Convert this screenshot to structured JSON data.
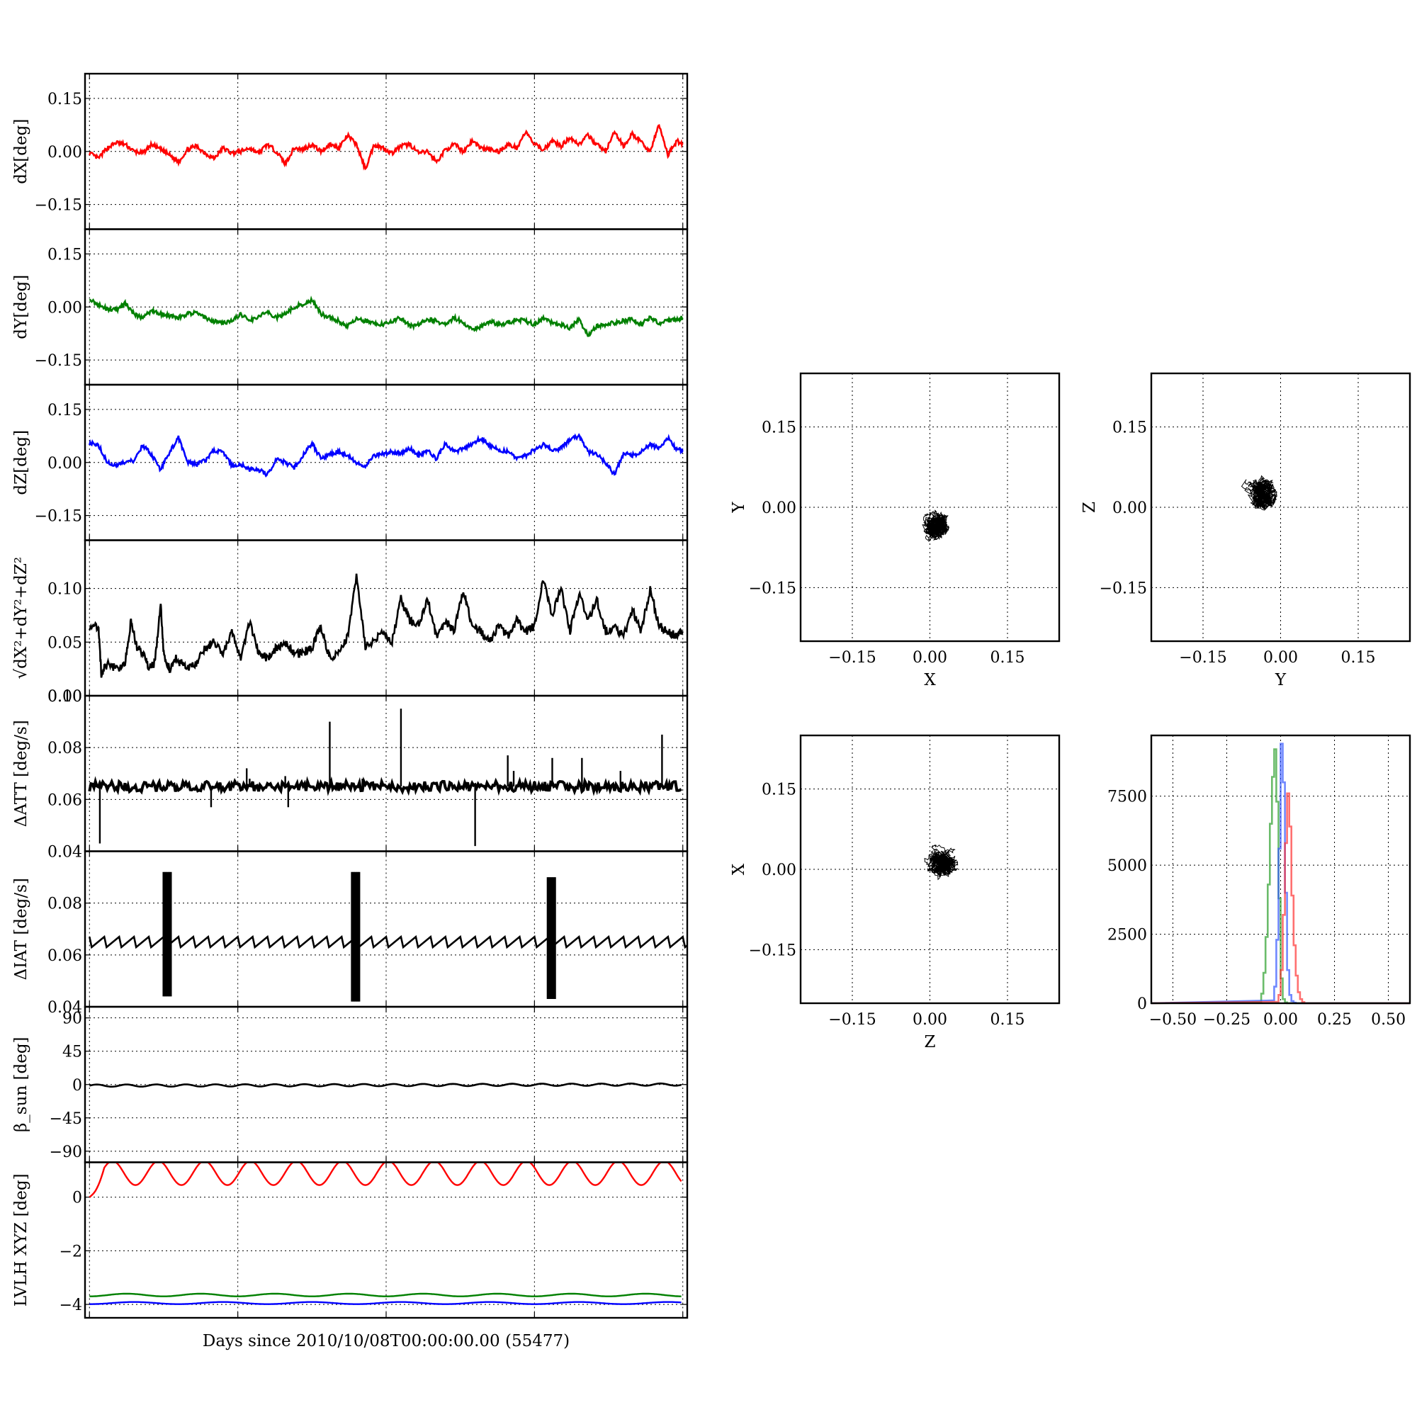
{
  "figure_xlabel": "Days since 2010/10/08T00:00:00.00 (55477)",
  "chart_data": [
    {
      "id": "dx",
      "type": "line",
      "ylabel": "dX[deg]",
      "ylim": [
        -0.22,
        0.22
      ],
      "yticks": [
        0.15,
        0.0,
        -0.15
      ],
      "ytick_labels": [
        "0.15",
        "0.00",
        "−0.15"
      ],
      "grid": true,
      "series": [
        {
          "color": "#ff0000",
          "x": [
            0,
            0.3,
            0.6,
            0.9,
            1.2,
            1.5,
            1.8,
            2.1,
            2.4,
            2.7,
            3.0,
            3.3,
            3.6,
            3.9,
            4.2,
            4.5,
            4.8,
            5.1,
            5.4,
            5.7,
            6.0,
            6.3,
            6.6,
            6.9,
            7.2,
            7.5,
            7.8,
            8.1,
            8.4,
            8.7,
            9.0,
            9.3,
            9.6,
            9.9,
            10.2,
            10.5,
            10.8,
            11.1,
            11.4,
            11.7,
            12.0,
            12.3,
            12.6,
            12.9,
            13.2,
            13.5,
            13.8,
            14.1,
            14.4,
            14.7,
            15.0,
            15.3,
            15.6,
            15.9,
            16.2,
            16.5,
            16.8,
            17.1,
            17.4,
            17.7,
            18.0,
            18.3,
            18.6,
            18.9,
            19.2,
            19.5,
            19.8,
            20.0
          ],
          "values": [
            -0.005,
            -0.02,
            0.01,
            0.025,
            0.02,
            0.0,
            -0.005,
            0.02,
            0.005,
            -0.01,
            -0.03,
            0.005,
            0.015,
            -0.005,
            -0.02,
            0.01,
            -0.005,
            0.0,
            0.01,
            -0.005,
            0.02,
            0.0,
            -0.035,
            0.01,
            0.005,
            0.02,
            0.0,
            0.02,
            0.01,
            0.045,
            0.02,
            -0.05,
            0.02,
            0.01,
            -0.005,
            0.015,
            0.02,
            -0.005,
            0.0,
            -0.03,
            0.005,
            0.02,
            0.0,
            0.03,
            0.01,
            0.005,
            0.0,
            0.02,
            0.01,
            0.055,
            0.02,
            0.005,
            0.03,
            0.015,
            0.04,
            0.02,
            0.045,
            0.02,
            0.0,
            0.055,
            0.015,
            0.05,
            0.025,
            0.0,
            0.075,
            -0.01,
            0.03,
            0.02
          ]
        }
      ]
    },
    {
      "id": "dy",
      "type": "line",
      "ylabel": "dY[deg]",
      "ylim": [
        -0.22,
        0.22
      ],
      "yticks": [
        0.15,
        0.0,
        -0.15
      ],
      "ytick_labels": [
        "0.15",
        "0.00",
        "−0.15"
      ],
      "grid": true,
      "series": [
        {
          "color": "#008000",
          "x": [
            0,
            0.3,
            0.6,
            0.9,
            1.2,
            1.5,
            1.8,
            2.1,
            2.4,
            2.7,
            3.0,
            3.3,
            3.6,
            3.9,
            4.2,
            4.5,
            4.8,
            5.1,
            5.4,
            5.7,
            6.0,
            6.3,
            6.6,
            6.9,
            7.2,
            7.5,
            7.8,
            8.1,
            8.4,
            8.7,
            9.0,
            9.3,
            9.6,
            9.9,
            10.2,
            10.5,
            10.8,
            11.1,
            11.4,
            11.7,
            12.0,
            12.3,
            12.6,
            12.9,
            13.2,
            13.5,
            13.8,
            14.1,
            14.4,
            14.7,
            15.0,
            15.3,
            15.6,
            15.9,
            16.2,
            16.5,
            16.8,
            17.1,
            17.4,
            17.7,
            18.0,
            18.3,
            18.6,
            18.9,
            19.2,
            19.5,
            19.8,
            20.0
          ],
          "values": [
            0.025,
            0.005,
            -0.005,
            -0.01,
            0.01,
            -0.02,
            -0.03,
            -0.01,
            -0.02,
            -0.025,
            -0.03,
            -0.02,
            -0.015,
            -0.03,
            -0.04,
            -0.045,
            -0.04,
            -0.02,
            -0.04,
            -0.025,
            -0.015,
            -0.03,
            -0.02,
            0.0,
            0.01,
            0.02,
            -0.02,
            -0.03,
            -0.04,
            -0.055,
            -0.035,
            -0.04,
            -0.045,
            -0.05,
            -0.04,
            -0.03,
            -0.055,
            -0.05,
            -0.035,
            -0.04,
            -0.05,
            -0.03,
            -0.045,
            -0.065,
            -0.055,
            -0.04,
            -0.05,
            -0.045,
            -0.035,
            -0.04,
            -0.05,
            -0.03,
            -0.045,
            -0.05,
            -0.06,
            -0.035,
            -0.08,
            -0.055,
            -0.05,
            -0.045,
            -0.04,
            -0.035,
            -0.05,
            -0.03,
            -0.045,
            -0.04,
            -0.035,
            -0.03
          ]
        }
      ]
    },
    {
      "id": "dz",
      "type": "line",
      "ylabel": "dZ[deg]",
      "ylim": [
        -0.22,
        0.22
      ],
      "yticks": [
        0.15,
        0.0,
        -0.15
      ],
      "ytick_labels": [
        "0.15",
        "0.00",
        "−0.15"
      ],
      "grid": true,
      "series": [
        {
          "color": "#0000ff",
          "x": [
            0,
            0.3,
            0.6,
            0.9,
            1.2,
            1.5,
            1.8,
            2.1,
            2.4,
            2.7,
            3.0,
            3.3,
            3.6,
            3.9,
            4.2,
            4.5,
            4.8,
            5.1,
            5.4,
            5.7,
            6.0,
            6.3,
            6.6,
            6.9,
            7.2,
            7.5,
            7.8,
            8.1,
            8.4,
            8.7,
            9.0,
            9.3,
            9.6,
            9.9,
            10.2,
            10.5,
            10.8,
            11.1,
            11.4,
            11.7,
            12.0,
            12.3,
            12.6,
            12.9,
            13.2,
            13.5,
            13.8,
            14.1,
            14.4,
            14.7,
            15.0,
            15.3,
            15.6,
            15.9,
            16.2,
            16.5,
            16.8,
            17.1,
            17.4,
            17.7,
            18.0,
            18.3,
            18.6,
            18.9,
            19.2,
            19.5,
            19.8,
            20.0
          ],
          "values": [
            0.055,
            0.05,
            0.0,
            -0.01,
            0.0,
            0.005,
            0.05,
            0.02,
            -0.02,
            0.03,
            0.07,
            0.0,
            -0.005,
            0.005,
            0.035,
            0.03,
            -0.01,
            -0.005,
            -0.02,
            -0.02,
            -0.035,
            0.01,
            0.0,
            -0.015,
            0.02,
            0.055,
            0.01,
            0.025,
            0.03,
            0.02,
            0.0,
            -0.01,
            0.02,
            0.025,
            0.03,
            0.025,
            0.04,
            0.02,
            0.035,
            0.01,
            0.055,
            0.03,
            0.04,
            0.05,
            0.07,
            0.045,
            0.035,
            0.03,
            0.015,
            0.02,
            0.035,
            0.05,
            0.035,
            0.04,
            0.065,
            0.075,
            0.03,
            0.025,
            0.0,
            -0.035,
            0.025,
            0.02,
            0.03,
            0.05,
            0.04,
            0.07,
            0.035,
            0.035
          ]
        }
      ]
    },
    {
      "id": "mag",
      "type": "line",
      "ylabel": "√dX²+dY²+dZ²",
      "ylim": [
        0.0,
        0.145
      ],
      "yticks": [
        0.1,
        0.05,
        0.0
      ],
      "ytick_labels": [
        "0.10",
        "0.05",
        "0.00"
      ],
      "grid": true,
      "series": [
        {
          "color": "#000000",
          "x": [
            0,
            0.3,
            0.4,
            0.6,
            0.9,
            1.2,
            1.4,
            1.6,
            1.8,
            2.0,
            2.2,
            2.4,
            2.5,
            2.7,
            2.9,
            3.1,
            3.3,
            3.6,
            3.9,
            4.2,
            4.5,
            4.8,
            5.1,
            5.4,
            5.7,
            6.0,
            6.3,
            6.6,
            6.9,
            7.2,
            7.5,
            7.8,
            8.1,
            8.4,
            8.7,
            9.0,
            9.3,
            9.6,
            9.9,
            10.2,
            10.5,
            10.8,
            11.1,
            11.4,
            11.7,
            12.0,
            12.3,
            12.6,
            12.9,
            13.2,
            13.5,
            13.8,
            14.1,
            14.4,
            14.7,
            15.0,
            15.3,
            15.6,
            15.9,
            16.2,
            16.5,
            16.8,
            17.1,
            17.4,
            17.7,
            18.0,
            18.3,
            18.6,
            18.9,
            19.2,
            19.5,
            19.8,
            20.0
          ],
          "values": [
            0.065,
            0.065,
            0.02,
            0.03,
            0.025,
            0.03,
            0.07,
            0.045,
            0.04,
            0.025,
            0.03,
            0.085,
            0.04,
            0.025,
            0.035,
            0.03,
            0.025,
            0.03,
            0.045,
            0.05,
            0.04,
            0.06,
            0.035,
            0.07,
            0.04,
            0.035,
            0.045,
            0.05,
            0.04,
            0.04,
            0.045,
            0.065,
            0.035,
            0.04,
            0.055,
            0.11,
            0.045,
            0.05,
            0.06,
            0.05,
            0.09,
            0.07,
            0.065,
            0.09,
            0.055,
            0.07,
            0.06,
            0.1,
            0.065,
            0.06,
            0.05,
            0.065,
            0.055,
            0.07,
            0.06,
            0.065,
            0.11,
            0.075,
            0.1,
            0.06,
            0.095,
            0.07,
            0.09,
            0.06,
            0.065,
            0.055,
            0.08,
            0.06,
            0.1,
            0.065,
            0.06,
            0.055,
            0.06
          ]
        }
      ]
    },
    {
      "id": "datt",
      "type": "line",
      "ylabel": "ΔATT [deg/s]",
      "ylim": [
        0.04,
        0.1
      ],
      "yticks": [
        0.1,
        0.08,
        0.06,
        0.04
      ],
      "ytick_labels": [
        "0.10",
        "0.08",
        "0.06",
        "0.04"
      ],
      "grid": true,
      "baseline": 0.065,
      "spikes": [
        [
          0.35,
          0.043
        ],
        [
          4.1,
          0.057
        ],
        [
          5.3,
          0.072
        ],
        [
          5.4,
          0.068
        ],
        [
          6.7,
          0.057
        ],
        [
          6.6,
          0.069
        ],
        [
          8.1,
          0.09
        ],
        [
          9.2,
          0.068
        ],
        [
          10.5,
          0.095
        ],
        [
          13.0,
          0.042
        ],
        [
          14.1,
          0.077
        ],
        [
          14.3,
          0.071
        ],
        [
          15.6,
          0.076
        ],
        [
          16.6,
          0.076
        ],
        [
          17.9,
          0.071
        ],
        [
          19.3,
          0.085
        ]
      ],
      "series": [
        {
          "color": "#000000"
        }
      ]
    },
    {
      "id": "diat",
      "type": "line",
      "ylabel": "ΔIAT [deg/s]",
      "ylim": [
        0.04,
        0.1
      ],
      "yticks": [
        0.08,
        0.06,
        0.04
      ],
      "ytick_labels": [
        "0.08",
        "0.06",
        "0.04"
      ],
      "grid": true,
      "sawtooth": {
        "low": 0.063,
        "high": 0.067,
        "period": 0.5
      },
      "bursts": [
        [
          2.5,
          2.75,
          0.044,
          0.092
        ],
        [
          8.85,
          9.1,
          0.042,
          0.092
        ],
        [
          15.45,
          15.7,
          0.043,
          0.09
        ]
      ],
      "series": [
        {
          "color": "#000000"
        }
      ]
    },
    {
      "id": "beta",
      "type": "line",
      "ylabel": "β_sun [deg]",
      "ylim": [
        -105,
        105
      ],
      "yticks": [
        90,
        45,
        0,
        -45,
        -90
      ],
      "ytick_labels": [
        "90",
        "45",
        "0",
        "−45",
        "−90"
      ],
      "grid": true,
      "wave": {
        "mean": 0,
        "amplitude": 1.5,
        "period": 1.0
      },
      "series": [
        {
          "color": "#000000"
        }
      ]
    },
    {
      "id": "lvlh",
      "type": "line",
      "ylabel": "LVLH XYZ [deg]",
      "ylim": [
        -4.5,
        1.3
      ],
      "yticks": [
        0,
        -2,
        -4
      ],
      "ytick_labels": [
        "0",
        "−2",
        "−4"
      ],
      "grid": true,
      "series": [
        {
          "color": "#ff0000",
          "wave": {
            "mean": 0.9,
            "amplitude": 0.45,
            "period": 1.55
          }
        },
        {
          "color": "#008000",
          "wave": {
            "mean": -3.65,
            "amplitude": 0.05,
            "period": 2.5
          }
        },
        {
          "color": "#0000ff",
          "wave": {
            "mean": -3.95,
            "amplitude": 0.04,
            "period": 3.0
          }
        }
      ]
    },
    {
      "id": "xy",
      "type": "scatter",
      "xlabel": "X",
      "ylabel": "Y",
      "xlim": [
        -0.25,
        0.25
      ],
      "ylim": [
        -0.25,
        0.25
      ],
      "ticks": [
        -0.15,
        0.0,
        0.15
      ],
      "tick_labels": [
        "−0.15",
        "0.00",
        "0.15"
      ],
      "grid": true,
      "cluster": {
        "cx": 0.015,
        "cy": -0.035,
        "sx": 0.03,
        "sy": 0.03
      }
    },
    {
      "id": "yz",
      "type": "scatter",
      "xlabel": "Y",
      "ylabel": "Z",
      "xlim": [
        -0.25,
        0.25
      ],
      "ylim": [
        -0.25,
        0.25
      ],
      "ticks": [
        -0.15,
        0.0,
        0.15
      ],
      "tick_labels": [
        "−0.15",
        "0.00",
        "0.15"
      ],
      "grid": true,
      "cluster": {
        "cx": -0.035,
        "cy": 0.025,
        "sx": 0.025,
        "sy": 0.03
      }
    },
    {
      "id": "zx",
      "type": "scatter",
      "xlabel": "Z",
      "ylabel": "X",
      "xlim": [
        -0.25,
        0.25
      ],
      "ylim": [
        -0.25,
        0.25
      ],
      "ticks": [
        -0.15,
        0.0,
        0.15
      ],
      "tick_labels": [
        "−0.15",
        "0.00",
        "0.15"
      ],
      "grid": true,
      "cluster": {
        "cx": 0.025,
        "cy": 0.01,
        "sx": 0.03,
        "sy": 0.028
      }
    },
    {
      "id": "hist",
      "type": "histogram",
      "xlim": [
        -0.6,
        0.6
      ],
      "ylim": [
        0,
        9700
      ],
      "xticks": [
        -0.5,
        -0.25,
        0.0,
        0.25,
        0.5
      ],
      "xtick_labels": [
        "−0.50",
        "−0.25",
        "0.00",
        "0.25",
        "0.50"
      ],
      "yticks": [
        0,
        2500,
        5000,
        7500
      ],
      "ytick_labels": [
        "0",
        "2500",
        "5000",
        "7500"
      ],
      "grid": true,
      "series": [
        {
          "color": "#2ca02c",
          "bins": [
            -0.1,
            -0.09,
            -0.08,
            -0.07,
            -0.06,
            -0.05,
            -0.04,
            -0.03,
            -0.02,
            -0.01,
            0.0,
            0.01,
            0.02
          ],
          "counts": [
            50,
            350,
            1100,
            2400,
            4300,
            6500,
            8200,
            9200,
            7300,
            3800,
            900,
            150,
            30
          ]
        },
        {
          "color": "#3355ff",
          "bins": [
            -0.04,
            -0.03,
            -0.02,
            -0.01,
            0.0,
            0.01,
            0.02,
            0.03,
            0.04,
            0.05,
            0.06
          ],
          "counts": [
            100,
            600,
            2300,
            5600,
            9400,
            8000,
            4000,
            1200,
            300,
            80,
            20
          ]
        },
        {
          "color": "#ff3333",
          "bins": [
            -0.02,
            -0.01,
            0.0,
            0.01,
            0.02,
            0.03,
            0.04,
            0.05,
            0.06,
            0.07,
            0.08,
            0.09,
            0.1
          ],
          "counts": [
            50,
            300,
            1200,
            3200,
            5800,
            7600,
            6400,
            3900,
            2100,
            1000,
            400,
            150,
            40
          ]
        }
      ]
    }
  ]
}
